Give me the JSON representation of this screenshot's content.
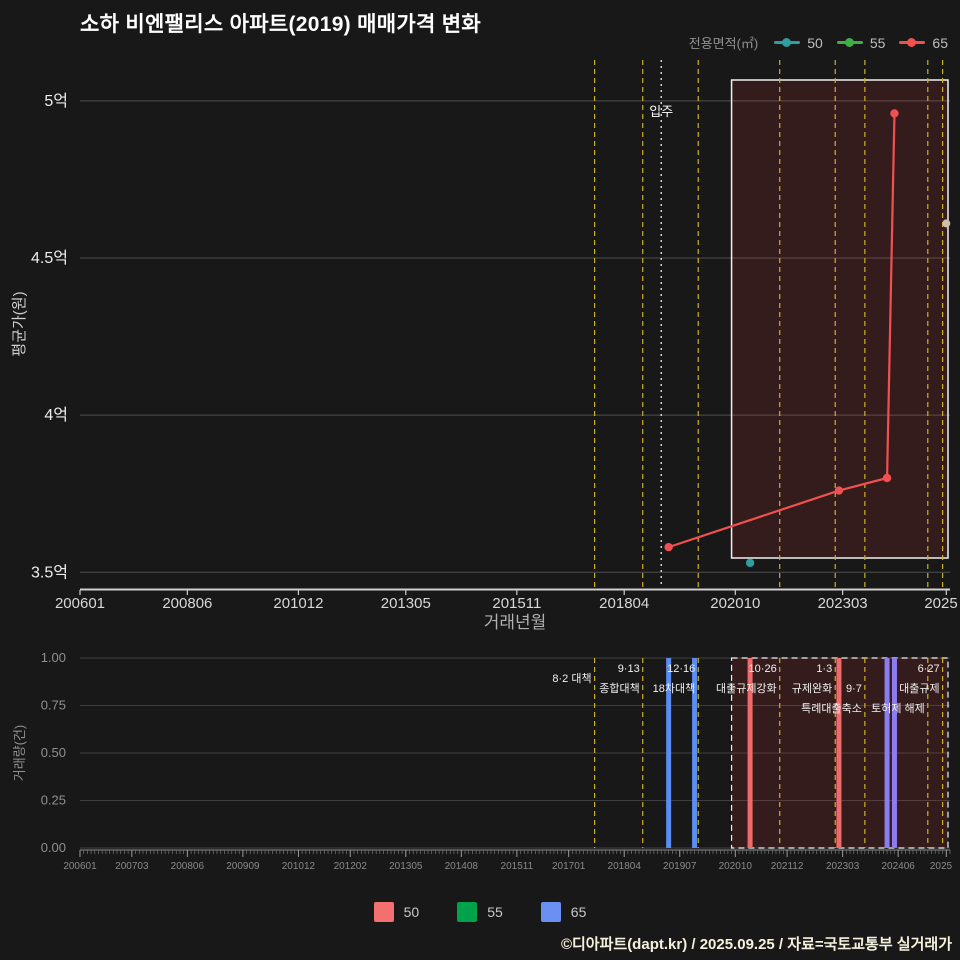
{
  "page": {
    "title": "소하 비엔팰리스 아파트(2019) 매매가격 변화",
    "footer": "©디아파트(dapt.kr) / 2025.09.25 / 자료=국토교통부 실거래가"
  },
  "top_legend": {
    "title": "전용면적(㎡)",
    "items": [
      {
        "label": "50",
        "color": "#2f9e9e"
      },
      {
        "label": "55",
        "color": "#3fae49"
      },
      {
        "label": "65",
        "color": "#f05050"
      }
    ]
  },
  "bottom_legend": {
    "items": [
      {
        "label": "50",
        "color": "#f27070"
      },
      {
        "label": "55",
        "color": "#00a24a"
      },
      {
        "label": "65",
        "color": "#6b8ff2"
      }
    ]
  },
  "chart_data": [
    {
      "type": "line",
      "xlabel": "거래년월",
      "ylabel": "평균가(원)",
      "x_range": [
        "200601",
        "202508"
      ],
      "x_ticks": [
        "200601",
        "200806",
        "201012",
        "201305",
        "201511",
        "201804",
        "202010",
        "202303",
        "2025"
      ],
      "y_ticks": [
        {
          "value": 3.5,
          "label": "3.5억"
        },
        {
          "value": 4.0,
          "label": "4억"
        },
        {
          "value": 4.5,
          "label": "4.5억"
        },
        {
          "value": 5.0,
          "label": "5억"
        }
      ],
      "ylim": [
        3.45,
        5.13
      ],
      "unit": "억원",
      "series": [
        {
          "name": "50",
          "color": "#2f9e9e",
          "points": [
            {
              "x": "202102",
              "y": 3.53
            }
          ]
        },
        {
          "name": "55",
          "color": "#3fae49",
          "points": []
        },
        {
          "name": "65",
          "color": "#f05050",
          "points": [
            {
              "x": "201904",
              "y": 3.58
            },
            {
              "x": "202302",
              "y": 3.76
            },
            {
              "x": "202403",
              "y": 3.8
            },
            {
              "x": "202405",
              "y": 4.96
            }
          ]
        }
      ],
      "latest_marker": {
        "x": "202507",
        "y": 4.61,
        "color": "#cfc0ae"
      },
      "movein_line": {
        "x": "201902",
        "label": "입주",
        "color": "#dddddd"
      },
      "policy_line_color": "#c9b227",
      "policy_lines": [
        "201708",
        "201809",
        "201912",
        "202110",
        "202301",
        "202309",
        "202502",
        "202506"
      ],
      "highlight_region": {
        "from": "202009",
        "to": "202508",
        "fill": "rgba(235,60,60,0.14)",
        "border": "#f0f0f0"
      }
    },
    {
      "type": "bar",
      "ylabel": "거래량(건)",
      "ylim": [
        0,
        1
      ],
      "y_ticks": [
        {
          "value": 0,
          "label": "0.00"
        },
        {
          "value": 0.25,
          "label": "0.25"
        },
        {
          "value": 0.5,
          "label": "0.50"
        },
        {
          "value": 0.75,
          "label": "0.75"
        },
        {
          "value": 1,
          "label": "1.00"
        }
      ],
      "x_range": [
        "200601",
        "202508"
      ],
      "x_ticks": [
        "200601",
        "200703",
        "200806",
        "200909",
        "201012",
        "201202",
        "201305",
        "201408",
        "201511",
        "201701",
        "201804",
        "201907",
        "202010",
        "202112",
        "202303",
        "202406",
        "2025"
      ],
      "bars": [
        {
          "x": "201904",
          "value": 1,
          "size": "65",
          "color": "#5b8df0"
        },
        {
          "x": "201911",
          "value": 1,
          "size": "65",
          "color": "#5b8df0"
        },
        {
          "x": "202102",
          "value": 1,
          "size": "50",
          "color": "#f06a6a"
        },
        {
          "x": "202302",
          "value": 1,
          "size": "50",
          "color": "#f06a6a"
        },
        {
          "x": "202403",
          "value": 1,
          "size": "50+65",
          "color": "#8b7cf0"
        },
        {
          "x": "202405",
          "value": 1,
          "size": "50+65",
          "color": "#8b7cf0"
        }
      ],
      "policy_line_color": "#c9b227",
      "policy_annotations": [
        {
          "x": "201708",
          "row": 0.5,
          "text": "8·2 대책"
        },
        {
          "x": "201809",
          "row": 0,
          "text": "9·13"
        },
        {
          "x": "201809",
          "row": 1,
          "text": "종합대책"
        },
        {
          "x": "201912",
          "row": 0,
          "text": "12·16"
        },
        {
          "x": "201912",
          "row": 1,
          "text": "18차대책"
        },
        {
          "x": "202110",
          "row": 0,
          "text": "10·26"
        },
        {
          "x": "202110",
          "row": 1,
          "text": "대출규제강화"
        },
        {
          "x": "202301",
          "row": 0,
          "text": "1·3"
        },
        {
          "x": "202301",
          "row": 1,
          "text": "규제완화"
        },
        {
          "x": "202309",
          "row": 1,
          "text": "9·7"
        },
        {
          "x": "202309",
          "row": 2,
          "text": "특례대출축소"
        },
        {
          "x": "202502",
          "row": 2,
          "text": "토허제 해제"
        },
        {
          "x": "202506",
          "row": 0,
          "text": "6·27"
        },
        {
          "x": "202506",
          "row": 1,
          "text": "대출규제"
        }
      ],
      "highlight_region": {
        "from": "202009",
        "to": "202508",
        "fill": "rgba(235,60,60,0.14)",
        "border": "#f0f0f0",
        "dashed": true
      }
    }
  ]
}
